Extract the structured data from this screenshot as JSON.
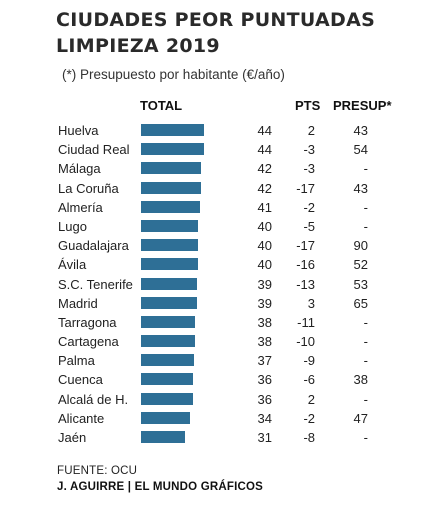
{
  "title_lines": [
    "CIUDADES PEOR PUNTUADAS",
    "LIMPIEZA 2019"
  ],
  "subtitle": "(*) Presupuesto por habitante (€/año)",
  "headers": {
    "total": "TOTAL",
    "pts": "PTS",
    "presup": "PRESUP*"
  },
  "source": "FUENTE: OCU",
  "credit": "J. AGUIRRE | EL MUNDO GRÁFICOS",
  "colors": {
    "bar": "#2e6f96"
  },
  "chart_data": {
    "type": "bar",
    "orientation": "horizontal",
    "title": "CIUDADES PEOR PUNTUADAS LIMPIEZA 2019",
    "categories": [
      "Huelva",
      "Ciudad Real",
      "Málaga",
      "La Coruña",
      "Almería",
      "Lugo",
      "Guadalajara",
      "Ávila",
      "S.C. Tenerife",
      "Madrid",
      "Tarragona",
      "Cartagena",
      "Palma",
      "Cuenca",
      "Alcalá de H.",
      "Alicante",
      "Jaén"
    ],
    "series": [
      {
        "name": "TOTAL",
        "values": [
          44,
          44,
          42,
          42,
          41,
          40,
          40,
          40,
          39,
          39,
          38,
          38,
          37,
          36,
          36,
          34,
          31
        ]
      }
    ],
    "pts": [
      "2",
      "-3",
      "-3",
      "-17",
      "-2",
      "-5",
      "-17",
      "-16",
      "-13",
      "3",
      "-11",
      "-10",
      "-9",
      "-6",
      "2",
      "-2",
      "-8"
    ],
    "presup": [
      "43",
      "54",
      "-",
      "43",
      "-",
      "-",
      "90",
      "52",
      "53",
      "65",
      "-",
      "-",
      "-",
      "38",
      "-",
      "47",
      "-"
    ],
    "xlim": [
      0,
      44
    ],
    "grid": false,
    "legend": "none"
  }
}
